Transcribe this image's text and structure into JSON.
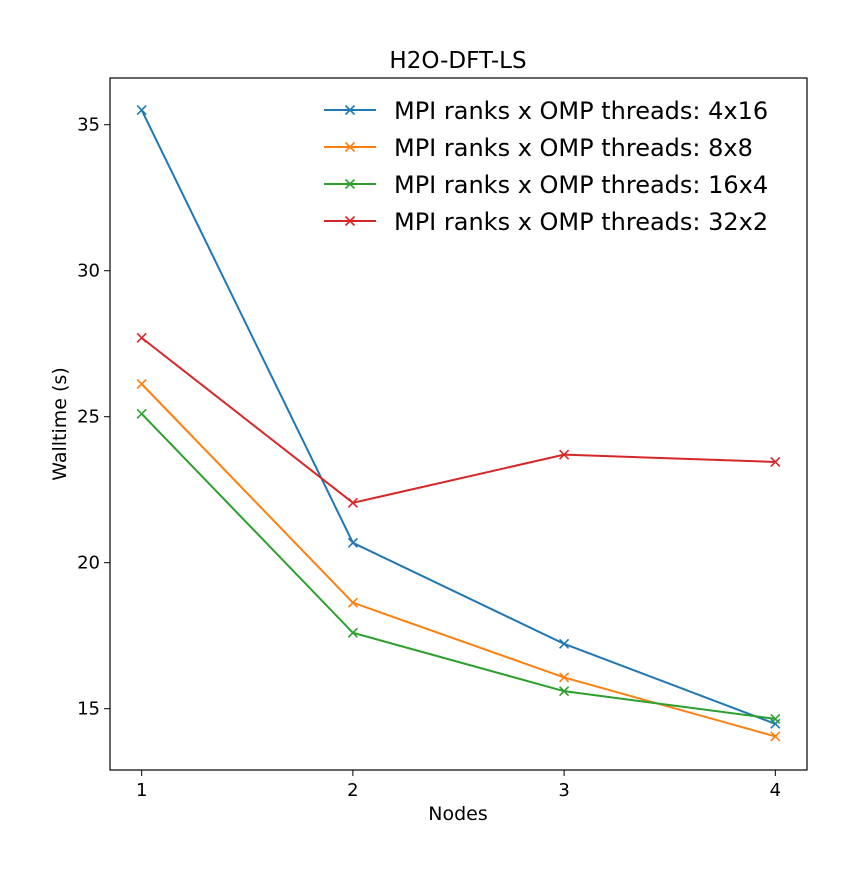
{
  "chart_data": {
    "type": "line",
    "title": "H2O-DFT-LS",
    "xlabel": "Nodes",
    "ylabel": "Walltime (s)",
    "x": [
      1,
      2,
      3,
      4
    ],
    "xticks": [
      "1",
      "2",
      "3",
      "4"
    ],
    "yticks": [
      "15",
      "20",
      "25",
      "30",
      "35"
    ],
    "xlim": [
      0.85,
      4.15
    ],
    "ylim": [
      12.9,
      36.6
    ],
    "grid": false,
    "legend_position": "top-right",
    "marker": "x",
    "series": [
      {
        "name": "MPI ranks x OMP threads: 4x16",
        "color": "#1f77b4",
        "values": [
          35.5,
          20.68,
          17.22,
          14.48
        ]
      },
      {
        "name": "MPI ranks x OMP threads: 8x8",
        "color": "#ff7f0e",
        "values": [
          26.12,
          18.63,
          16.07,
          14.05
        ]
      },
      {
        "name": "MPI ranks x OMP threads: 16x4",
        "color": "#2ca02c",
        "values": [
          25.1,
          17.6,
          15.6,
          14.65
        ]
      },
      {
        "name": "MPI ranks x OMP threads: 32x2",
        "color": "#d62728",
        "values": [
          27.7,
          22.05,
          23.7,
          23.45
        ]
      }
    ]
  }
}
